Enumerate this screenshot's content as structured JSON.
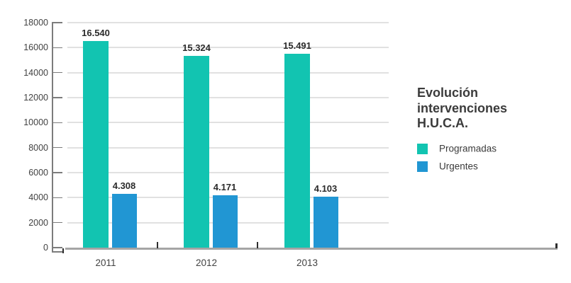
{
  "chart_data": {
    "type": "bar",
    "title": "Evolución intervenciones H.U.C.A.",
    "categories": [
      "2011",
      "2012",
      "2013"
    ],
    "series": [
      {
        "name": "Programadas",
        "color": "#12c4b1",
        "values": [
          16540,
          15324,
          15491
        ],
        "value_labels": [
          "16.540",
          "15.324",
          "15.491"
        ]
      },
      {
        "name": "Urgentes",
        "color": "#2196d3",
        "values": [
          4308,
          4171,
          4103
        ],
        "value_labels": [
          "4.308",
          "4.171",
          "4.103"
        ]
      }
    ],
    "y_axis": {
      "min": 0,
      "max": 18000,
      "step": 2000,
      "tick_labels": [
        "0",
        "2000",
        "4000",
        "6000",
        "8000",
        "10000",
        "12000",
        "14000",
        "16000",
        "18000"
      ]
    },
    "xlabel": "",
    "ylabel": "",
    "grid": true,
    "legend_position": "right",
    "colors": {
      "gridline": "#e1e1e1",
      "axis": "#7c7c7c",
      "baseline": "#a5a5a5",
      "text": "#3b3b3b"
    }
  }
}
